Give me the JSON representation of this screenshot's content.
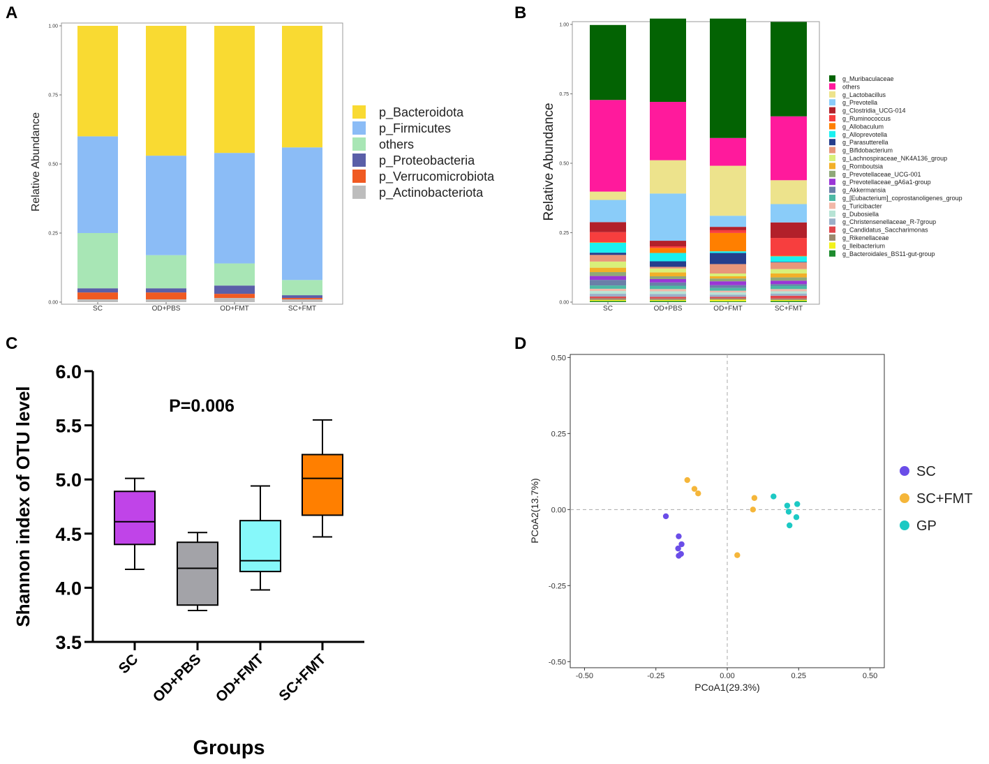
{
  "panel_labels": {
    "a": "A",
    "b": "B",
    "c": "C",
    "d": "D"
  },
  "colors": {
    "bacteroidota": "#F9DA32",
    "firmicutes": "#8BBCF6",
    "others_light": "#A8E6B5",
    "proteobacteria": "#5A5FA8",
    "verrucomicrobiota": "#F05A22",
    "actinobacteriota": "#BDBDBD",
    "sc_box": "#C044E8",
    "odpbs_box": "#A3A3A8",
    "odfmt_box": "#86F8FA",
    "scfmt_box": "#FF7F00",
    "pcoa_sc": "#6A4DE8",
    "pcoa_scfmt": "#F5B63A",
    "pcoa_gp": "#1CC9C4"
  },
  "chart_data": [
    {
      "panel": "A",
      "type": "bar",
      "stacked": true,
      "title": "",
      "xlabel": "",
      "ylabel": "Relative Abundance",
      "ylim": [
        0,
        1
      ],
      "yticks": [
        "0.00",
        "0.25",
        "0.50",
        "0.75",
        "1.00"
      ],
      "categories": [
        "SC",
        "OD+PBS",
        "OD+FMT",
        "SC+FMT"
      ],
      "series": [
        {
          "name": "p_Actinobacteriota",
          "color": "#BDBDBD",
          "values": [
            0.01,
            0.01,
            0.015,
            0.01
          ]
        },
        {
          "name": "p_Verrucomicrobiota",
          "color": "#F05A22",
          "values": [
            0.025,
            0.025,
            0.015,
            0.005
          ]
        },
        {
          "name": "p_Proteobacteria",
          "color": "#5A5FA8",
          "values": [
            0.015,
            0.015,
            0.03,
            0.01
          ]
        },
        {
          "name": "others",
          "color": "#A8E6B5",
          "values": [
            0.2,
            0.12,
            0.08,
            0.055
          ]
        },
        {
          "name": "p_Firmicutes",
          "color": "#8BBCF6",
          "values": [
            0.35,
            0.36,
            0.4,
            0.48
          ]
        },
        {
          "name": "p_Bacteroidota",
          "color": "#F9DA32",
          "values": [
            0.4,
            0.47,
            0.46,
            0.44
          ]
        }
      ],
      "legend": [
        "p_Bacteroidota",
        "p_Firmicutes",
        "others",
        "p_Proteobacteria",
        "p_Verrucomicrobiota",
        "p_Actinobacteriota"
      ],
      "legend_position": "right"
    },
    {
      "panel": "B",
      "type": "bar",
      "stacked": true,
      "title": "",
      "xlabel": "",
      "ylabel": "Relative Abundance",
      "ylim": [
        0,
        1
      ],
      "yticks": [
        "0.00",
        "0.25",
        "0.50",
        "0.75",
        "1.00"
      ],
      "categories": [
        "SC",
        "OD+PBS",
        "OD+FMT",
        "SC+FMT"
      ],
      "series": [
        {
          "name": "g_Bacteroidales_BS11-gut-group",
          "color": "#1E8B2E",
          "values": [
            0.004,
            0.004,
            0.003,
            0.004
          ]
        },
        {
          "name": "g_Ileibacterium",
          "color": "#F2F21C",
          "values": [
            0.004,
            0.004,
            0.006,
            0.004
          ]
        },
        {
          "name": "g_Rikenellaceae",
          "color": "#9B8A6E",
          "values": [
            0.006,
            0.005,
            0.005,
            0.005
          ]
        },
        {
          "name": "g_Candidatus_Saccharimonas",
          "color": "#E0474C",
          "values": [
            0.006,
            0.006,
            0.005,
            0.01
          ]
        },
        {
          "name": "g_Christensenellaceae_R-7group",
          "color": "#9BB0C8",
          "values": [
            0.01,
            0.01,
            0.008,
            0.008
          ]
        },
        {
          "name": "g_Dubosiella",
          "color": "#B7E3D5",
          "values": [
            0.01,
            0.01,
            0.008,
            0.008
          ]
        },
        {
          "name": "g_Turicibacter",
          "color": "#F2B8A8",
          "values": [
            0.008,
            0.008,
            0.006,
            0.008
          ]
        },
        {
          "name": "g_[Eubacterium]_coprostanoligenes_group",
          "color": "#4DB8A4",
          "values": [
            0.012,
            0.012,
            0.01,
            0.012
          ]
        },
        {
          "name": "g_Akkermansia",
          "color": "#6A7FA8",
          "values": [
            0.02,
            0.012,
            0.01,
            0.006
          ]
        },
        {
          "name": "g_Prevotellaceae_gA6a1-group",
          "color": "#9A35D6",
          "values": [
            0.014,
            0.012,
            0.014,
            0.012
          ]
        },
        {
          "name": "g_Prevotellaceae_UCG-001",
          "color": "#8FA878",
          "values": [
            0.014,
            0.01,
            0.01,
            0.012
          ]
        },
        {
          "name": "g_Romboutsia",
          "color": "#F2B028",
          "values": [
            0.016,
            0.014,
            0.008,
            0.014
          ]
        },
        {
          "name": "g_Lachnospiraceae_NK4A136_group",
          "color": "#D8F07A",
          "values": [
            0.022,
            0.014,
            0.01,
            0.016
          ]
        },
        {
          "name": "g_Bifidobacterium",
          "color": "#E8967A",
          "values": [
            0.024,
            0.006,
            0.034,
            0.024
          ]
        },
        {
          "name": "g_Parasutterella",
          "color": "#253E8C",
          "values": [
            0.008,
            0.02,
            0.04,
            0.002
          ]
        },
        {
          "name": "g_Alloprevotella",
          "color": "#1AF0F0",
          "values": [
            0.036,
            0.03,
            0.006,
            0.02
          ]
        },
        {
          "name": "g_Allobaculum",
          "color": "#FF7F00",
          "values": [
            0.002,
            0.018,
            0.066,
            0.002
          ]
        },
        {
          "name": "g_Ruminococcus",
          "color": "#F73E3E",
          "values": [
            0.036,
            0.006,
            0.01,
            0.064
          ]
        },
        {
          "name": "g_Clostridia_UCG-014",
          "color": "#B2202A",
          "values": [
            0.036,
            0.02,
            0.012,
            0.056
          ]
        },
        {
          "name": "g_Prevotella",
          "color": "#8ACCF9",
          "values": [
            0.08,
            0.17,
            0.04,
            0.066
          ]
        },
        {
          "name": "g_Lactobacillus",
          "color": "#EDE38C",
          "values": [
            0.03,
            0.12,
            0.18,
            0.086
          ]
        },
        {
          "name": "others",
          "color": "#FF1A9C",
          "values": [
            0.33,
            0.21,
            0.1,
            0.23
          ]
        },
        {
          "name": "g_Muribaculaceae",
          "color": "#036303",
          "values": [
            0.27,
            0.3,
            0.43,
            0.34
          ]
        }
      ],
      "legend": [
        "g_Muribaculaceae",
        "others",
        "g_Lactobacillus",
        "g_Prevotella",
        "g_Clostridia_UCG-014",
        "g_Ruminococcus",
        "g_Allobaculum",
        "g_Alloprevotella",
        "g_Parasutterella",
        "g_Bifidobacterium",
        "g_Lachnospiraceae_NK4A136_group",
        "g_Romboutsia",
        "g_Prevotellaceae_UCG-001",
        "g_Prevotellaceae_gA6a1-group",
        "g_Akkermansia",
        "g_[Eubacterium]_coprostanoligenes_group",
        "g_Turicibacter",
        "g_Dubosiella",
        "g_Christensenellaceae_R-7group",
        "g_Candidatus_Saccharimonas",
        "g_Rikenellaceae",
        "g_Ileibacterium",
        "g_Bacteroidales_BS11-gut-group"
      ],
      "legend_position": "right"
    },
    {
      "panel": "C",
      "type": "box",
      "title": "",
      "annotation": "P=0.006",
      "xlabel": "Groups",
      "ylabel": "Shannon index of OTU level",
      "ylim": [
        3.5,
        6.0
      ],
      "yticks": [
        "3.5",
        "4.0",
        "4.5",
        "5.0",
        "5.5",
        "6.0"
      ],
      "categories": [
        "SC",
        "OD+PBS",
        "OD+FMT",
        "SC+FMT"
      ],
      "boxes": [
        {
          "name": "SC",
          "color": "#C044E8",
          "min": 4.17,
          "q1": 4.4,
          "median": 4.61,
          "q3": 4.89,
          "max": 5.01
        },
        {
          "name": "OD+PBS",
          "color": "#A3A3A8",
          "min": 3.79,
          "q1": 3.84,
          "median": 4.18,
          "q3": 4.42,
          "max": 4.51
        },
        {
          "name": "OD+FMT",
          "color": "#86F8FA",
          "min": 3.98,
          "q1": 4.15,
          "median": 4.25,
          "q3": 4.62,
          "max": 4.94
        },
        {
          "name": "SC+FMT",
          "color": "#FF7F00",
          "min": 4.47,
          "q1": 4.67,
          "median": 5.01,
          "q3": 5.23,
          "max": 5.55
        }
      ]
    },
    {
      "panel": "D",
      "type": "scatter",
      "title": "",
      "xlabel": "PCoA1(29.3%)",
      "ylabel": "PCoA2(13.7%)",
      "xlim": [
        -0.55,
        0.55
      ],
      "ylim": [
        -0.52,
        0.51
      ],
      "xticks": [
        "-0.50",
        "-0.25",
        "0.00",
        "0.25",
        "0.50"
      ],
      "yticks": [
        "-0.50",
        "-0.25",
        "0.00",
        "0.25",
        "0.50"
      ],
      "series": [
        {
          "name": "SC",
          "color": "#6A4DE8",
          "points": [
            [
              -0.215,
              -0.022
            ],
            [
              -0.17,
              -0.088
            ],
            [
              -0.16,
              -0.114
            ],
            [
              -0.172,
              -0.128
            ],
            [
              -0.17,
              -0.152
            ],
            [
              -0.162,
              -0.146
            ]
          ]
        },
        {
          "name": "SC+FMT",
          "color": "#F5B63A",
          "points": [
            [
              -0.14,
              0.097
            ],
            [
              -0.115,
              0.068
            ],
            [
              -0.102,
              0.053
            ],
            [
              0.095,
              0.038
            ],
            [
              0.09,
              0.0
            ],
            [
              0.035,
              -0.15
            ]
          ]
        },
        {
          "name": "GP",
          "color": "#1CC9C4",
          "points": [
            [
              0.162,
              0.043
            ],
            [
              0.21,
              0.013
            ],
            [
              0.245,
              0.018
            ],
            [
              0.215,
              -0.007
            ],
            [
              0.242,
              -0.025
            ],
            [
              0.218,
              -0.052
            ]
          ]
        }
      ],
      "legend": [
        "SC",
        "SC+FMT",
        "GP"
      ],
      "legend_position": "right"
    }
  ]
}
